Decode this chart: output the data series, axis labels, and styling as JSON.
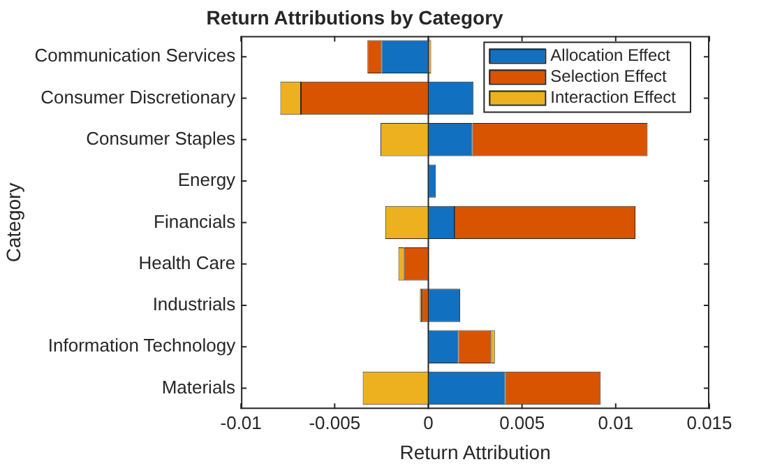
{
  "chart_data": {
    "type": "bar",
    "orientation": "horizontal",
    "stacked": true,
    "title": "Return Attributions by Category",
    "xlabel": "Return Attribution",
    "ylabel": "Category",
    "categories": [
      "Communication Services",
      "Consumer Discretionary",
      "Consumer Staples",
      "Energy",
      "Financials",
      "Health Care",
      "Industrials",
      "Information Technology",
      "Materials"
    ],
    "series": [
      {
        "name": "Allocation Effect",
        "color": "#1170bf",
        "values": [
          -0.0025,
          0.0024,
          0.00235,
          0.0004,
          0.0014,
          0,
          0.0017,
          0.0016,
          0.0041
        ]
      },
      {
        "name": "Selection Effect",
        "color": "#d95400",
        "values": [
          -0.00075,
          -0.0068,
          0.00935,
          0,
          0.00965,
          -0.0013,
          -0.00035,
          0.00175,
          0.0051
        ]
      },
      {
        "name": "Interaction Effect",
        "color": "#edb120",
        "values": [
          0.00015,
          -0.0011,
          -0.00255,
          0,
          -0.0023,
          -0.0003,
          -0.0001,
          0.0002,
          -0.0035
        ]
      }
    ],
    "xlim": [
      -0.01,
      0.015
    ],
    "xticks": [
      -0.01,
      -0.005,
      0,
      0.005,
      0.01,
      0.015
    ],
    "ref_lines": [
      {
        "axis": "x",
        "value": 0
      }
    ],
    "legend": "top right",
    "grid": false
  }
}
